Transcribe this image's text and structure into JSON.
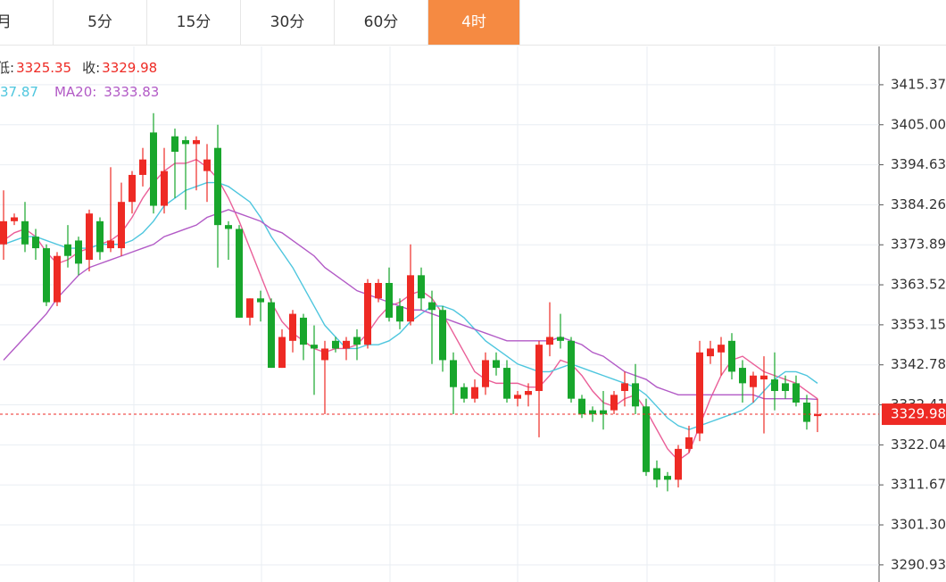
{
  "tabs": {
    "items": [
      "月",
      "5分",
      "15分",
      "30分",
      "60分",
      "4时"
    ],
    "active": 5
  },
  "chart_data": {
    "type": "candlestick",
    "legend": {
      "low_label": "低:",
      "low": 3325.35,
      "close_label": "收:",
      "close": 3329.98,
      "ma10_fragment": "37.87",
      "ma20_label": "MA20:",
      "ma20": 3333.83
    },
    "up_color": "#ee2a24",
    "down_color": "#18a62c",
    "ylim": [
      3286.5,
      3425.3
    ],
    "yticks": [
      3415.37,
      {
        "value": 3405.0,
        "label": "3405.00"
      },
      3394.63,
      3384.26,
      3373.89,
      3363.52,
      3353.15,
      3342.78,
      3332.41,
      3322.04,
      3311.67,
      {
        "value": 3301.3,
        "label": "3301.30"
      },
      3290.93
    ],
    "grid": true,
    "last_price": 3329.98,
    "last_price_color": "#ee2a24",
    "open": [
      3374,
      3380,
      3380,
      3376,
      3373,
      3359,
      3374,
      3375,
      3370,
      3380,
      3373,
      3373,
      3385,
      3392,
      3403,
      3384,
      3402,
      3401,
      3400,
      3393,
      3399,
      3379,
      3378,
      3355,
      3360,
      3359,
      3342,
      3349,
      3355,
      3348,
      3344,
      3349,
      3347,
      3350,
      3348,
      3360,
      3364,
      3358,
      3354,
      3366,
      3359,
      3357,
      3344,
      3337,
      3334,
      3337,
      3344,
      3342,
      3334,
      3335,
      3336,
      3348,
      3350,
      3349,
      3334,
      3331,
      3331,
      3331,
      3336,
      3338,
      3332,
      3316,
      3314,
      3313,
      3321,
      3325,
      3345,
      3346,
      3349,
      3342,
      3337,
      3339,
      3339,
      3338,
      3338,
      3333,
      3329.5
    ],
    "high": [
      3388,
      3382,
      3385,
      3378,
      3374,
      3372,
      3379,
      3376,
      3383,
      3381,
      3394,
      3390,
      3393,
      3399,
      3408,
      3399,
      3404,
      3402,
      3402,
      3400,
      3405,
      3380,
      3379,
      3360,
      3362,
      3360,
      3352,
      3357,
      3356,
      3353,
      3349,
      3350,
      3350,
      3352,
      3365,
      3365,
      3368,
      3360,
      3374,
      3368,
      3362,
      3358,
      3346,
      3338,
      3339,
      3346,
      3346,
      3344,
      3336,
      3338,
      3349,
      3359,
      3356,
      3350,
      3335,
      3332,
      3336,
      3336,
      3341,
      3343,
      3334,
      3318,
      3315,
      3322,
      3327,
      3349,
      3349,
      3350,
      3351,
      3344,
      3341,
      3345,
      3346,
      3340,
      3340,
      3335,
      3334
    ],
    "low": [
      3370,
      3379,
      3372,
      3370,
      3358,
      3358,
      3368,
      3366,
      3367,
      3370,
      3372,
      3371,
      3382,
      3389,
      3382,
      3382,
      3386,
      3383,
      3388,
      3385,
      3368,
      3370,
      3355,
      3353,
      3354,
      3342,
      3342,
      3346,
      3344,
      3335,
      3330,
      3346,
      3344,
      3344,
      3347,
      3359,
      3354,
      3352,
      3353,
      3357,
      3343,
      3341,
      3330,
      3333,
      3333,
      3335,
      3340,
      3333,
      3332,
      3332,
      3324,
      3345,
      3347,
      3333,
      3329,
      3328,
      3326,
      3330,
      3332,
      3330,
      3314,
      3311,
      3310,
      3311,
      3320,
      3323,
      3343,
      3340,
      3339,
      3333,
      3333,
      3325,
      3331,
      3334,
      3332,
      3326,
      3325.35
    ],
    "close": [
      3380,
      3381,
      3374,
      3373,
      3359,
      3371,
      3371,
      3369,
      3382,
      3372,
      3375,
      3385,
      3392,
      3396,
      3384,
      3393,
      3398,
      3400,
      3401,
      3396,
      3379,
      3378,
      3355,
      3360,
      3359,
      3342,
      3350,
      3356,
      3348,
      3347,
      3347,
      3347,
      3349,
      3348,
      3364,
      3364,
      3355,
      3354,
      3366,
      3360,
      3357,
      3344,
      3337,
      3334,
      3337,
      3344,
      3342,
      3334,
      3335,
      3336,
      3348,
      3350,
      3349,
      3334,
      3330,
      3330,
      3330,
      3335,
      3338,
      3332,
      3315,
      3313,
      3313,
      3321,
      3324,
      3346,
      3347,
      3348,
      3341,
      3338,
      3340,
      3340,
      3336,
      3336,
      3333,
      3328,
      3329.98
    ],
    "ma_lines": [
      {
        "color": "#ea5f98",
        "values": [
          3375,
          3377,
          3378,
          3376,
          3372,
          3369,
          3370,
          3372,
          3373,
          3374,
          3375,
          3377,
          3381,
          3386,
          3390,
          3393,
          3395,
          3395,
          3396,
          3394,
          3391,
          3386,
          3380,
          3373,
          3366,
          3359,
          3354,
          3351,
          3349,
          3347,
          3346,
          3347,
          3347,
          3348,
          3351,
          3355,
          3358,
          3359,
          3361,
          3362,
          3360,
          3356,
          3351,
          3346,
          3341,
          3339,
          3338,
          3338,
          3338,
          3337,
          3337,
          3340,
          3344,
          3343,
          3340,
          3336,
          3333,
          3332,
          3334,
          3335,
          3331,
          3326,
          3321,
          3318,
          3320,
          3327,
          3334,
          3340,
          3344,
          3345,
          3343,
          3341,
          3340,
          3339,
          3338,
          3336,
          3334
        ]
      },
      {
        "color": "#4ec6de",
        "values": [
          3374,
          3375,
          3376,
          3376,
          3375,
          3374,
          3373,
          3373,
          3373,
          3374,
          3374,
          3374,
          3375,
          3377,
          3380,
          3384,
          3386,
          3388,
          3389,
          3390,
          3390,
          3389,
          3387,
          3385,
          3381,
          3376,
          3372,
          3368,
          3363,
          3358,
          3353,
          3350,
          3347,
          3347,
          3348,
          3348,
          3349,
          3351,
          3354,
          3356,
          3358,
          3358,
          3357,
          3355,
          3352,
          3349,
          3347,
          3345,
          3343,
          3342,
          3341,
          3341,
          3342,
          3343,
          3342,
          3341,
          3340,
          3339,
          3338,
          3337,
          3335,
          3332,
          3329,
          3327,
          3326,
          3327,
          3328,
          3329,
          3330,
          3331,
          3333,
          3336,
          3339,
          3341,
          3341,
          3340,
          3338
        ]
      },
      {
        "color": "#b25ac6",
        "values": [
          3344,
          3347,
          3350,
          3353,
          3356,
          3360,
          3363,
          3366,
          3368,
          3369,
          3370,
          3371,
          3372,
          3373,
          3374,
          3376,
          3377,
          3378,
          3379,
          3381,
          3382,
          3383,
          3382,
          3381,
          3380,
          3378,
          3377,
          3375,
          3373,
          3371,
          3368,
          3366,
          3364,
          3362,
          3361,
          3360,
          3359,
          3358,
          3357,
          3357,
          3356,
          3355,
          3354,
          3353,
          3352,
          3351,
          3350,
          3349,
          3349,
          3349,
          3349,
          3349,
          3350,
          3349,
          3348,
          3346,
          3345,
          3343,
          3341,
          3340,
          3339,
          3337,
          3336,
          3335,
          3335,
          3335,
          3335,
          3335,
          3335,
          3335,
          3335,
          3334,
          3334,
          3334,
          3334,
          3334,
          3333.83
        ]
      }
    ]
  }
}
